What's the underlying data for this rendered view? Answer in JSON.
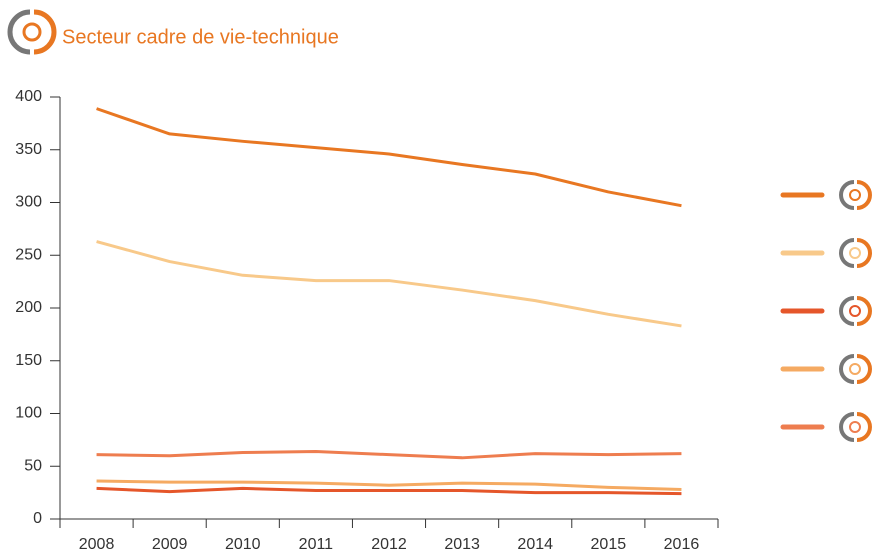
{
  "chart_data": {
    "type": "line",
    "title": "Secteur cadre de vie-technique",
    "categories": [
      "2008",
      "2009",
      "2010",
      "2011",
      "2012",
      "2013",
      "2014",
      "2015",
      "2016"
    ],
    "series": [
      {
        "color": "#e87722",
        "values": [
          389,
          365,
          358,
          352,
          346,
          336,
          327,
          310,
          297
        ]
      },
      {
        "color": "#f8c98a",
        "values": [
          263,
          244,
          231,
          226,
          226,
          217,
          207,
          194,
          183
        ]
      },
      {
        "color": "#e5562a",
        "values": [
          29,
          26,
          29,
          27,
          27,
          27,
          25,
          25,
          24
        ]
      },
      {
        "color": "#f5aa62",
        "values": [
          36,
          35,
          35,
          34,
          32,
          34,
          33,
          30,
          28
        ]
      },
      {
        "color": "#ee7d4f",
        "values": [
          61,
          60,
          63,
          64,
          61,
          58,
          62,
          61,
          62
        ]
      }
    ],
    "ylim": [
      0,
      400
    ],
    "yticks": [
      0,
      50,
      100,
      150,
      200,
      250,
      300,
      350,
      400
    ],
    "grid": false
  }
}
